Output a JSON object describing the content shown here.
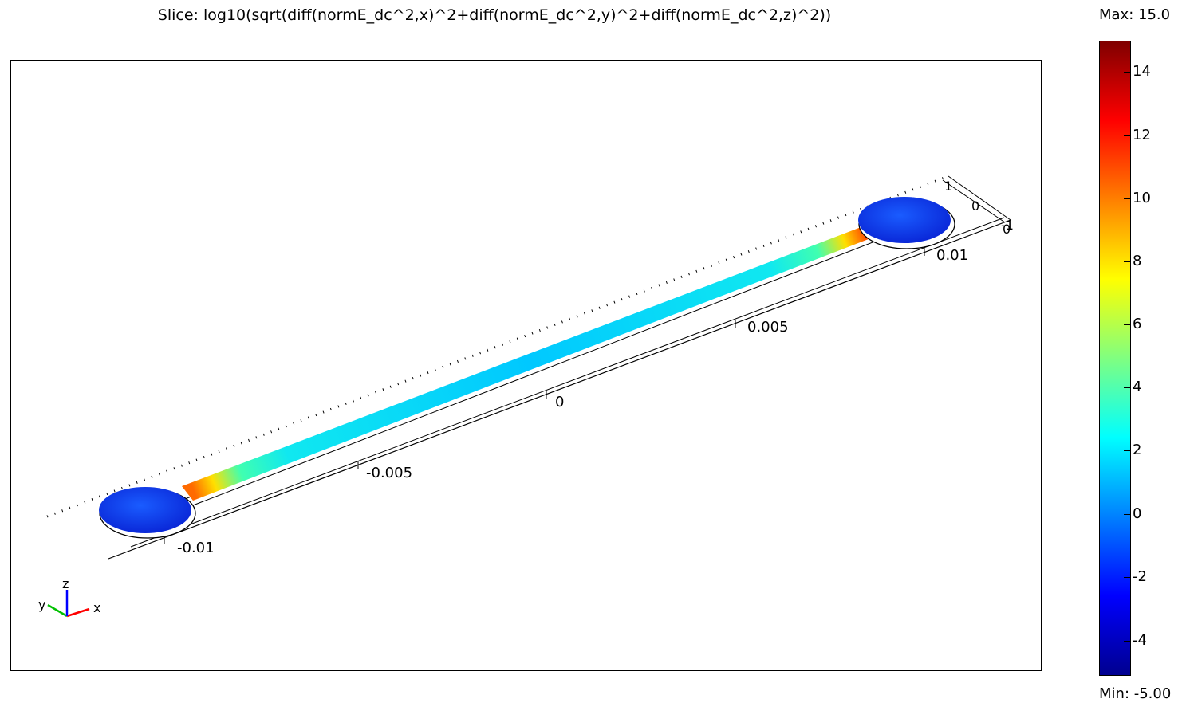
{
  "plot": {
    "title": "Slice: log10(sqrt(diff(normE_dc^2,x)^2+diff(normE_dc^2,y)^2+diff(normE_dc^2,z)^2))"
  },
  "colorbar": {
    "max_label": "Max: 15.0",
    "min_label": "Min: -5.00",
    "ticks": [
      "14",
      "12",
      "10",
      "8",
      "6",
      "4",
      "2",
      "0",
      "-2",
      "-4"
    ],
    "range": [
      -5,
      15
    ]
  },
  "axes": {
    "x_ticks": [
      "-0.01",
      "-0.005",
      "0",
      "0.005",
      "0.01"
    ],
    "y_ticks": [
      "1",
      "0"
    ],
    "z_ticks": [
      "0"
    ],
    "end_label": "-1",
    "triad": {
      "x": "x",
      "y": "y",
      "z": "z"
    }
  },
  "colors": {
    "x_axis": "#ff0000",
    "y_axis": "#00c000",
    "z_axis": "#0000ff"
  }
}
